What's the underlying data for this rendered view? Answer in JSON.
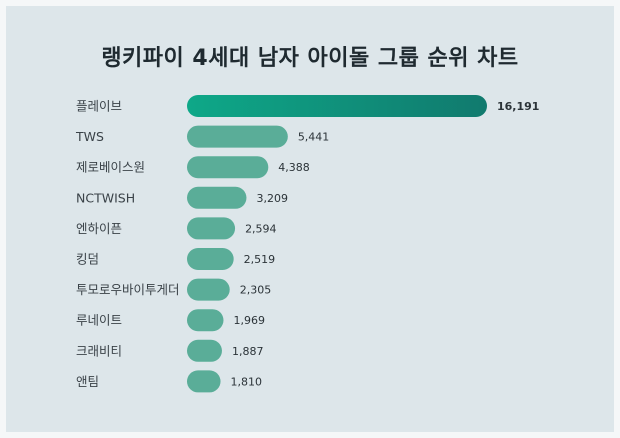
{
  "title": "랭키파이 4세대 남자 아이돌 그룹 순위 차트",
  "colors": {
    "background": "#dde6ea",
    "bar": "#5aad98",
    "top_bar_start": "#0ea888",
    "top_bar_end": "#117a6e"
  },
  "chart_data": {
    "type": "bar",
    "orientation": "horizontal",
    "title": "랭키파이 4세대 남자 아이돌 그룹 순위 차트",
    "categories": [
      "플레이브",
      "TWS",
      "제로베이스원",
      "NCTWISH",
      "엔하이픈",
      "킹덤",
      "투모로우바이투게더",
      "루네이트",
      "크래비티",
      "앤팀"
    ],
    "values": [
      16191,
      5441,
      4388,
      3209,
      2594,
      2519,
      2305,
      1969,
      1887,
      1810
    ],
    "value_labels": [
      "16,191",
      "5,441",
      "4,388",
      "3,209",
      "2,594",
      "2,519",
      "2,305",
      "1,969",
      "1,887",
      "1,810"
    ],
    "xlim": [
      0,
      16191
    ],
    "grid": false,
    "legend": "none"
  }
}
